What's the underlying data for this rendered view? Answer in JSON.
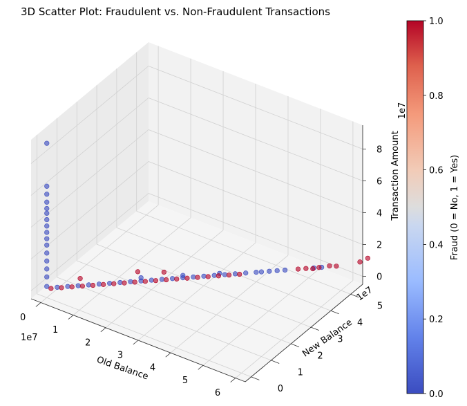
{
  "chart_data": {
    "type": "scatter",
    "title": "3D Scatter Plot: Fraudulent vs. Non-Fraudulent Transactions",
    "xlabel": "Old Balance",
    "ylabel": "New Balance",
    "zlabel": "Transaction Amount",
    "x_offset_text": "1e7",
    "y_offset_text": "1e7",
    "z_offset_text": "1e7",
    "xlim": [
      -0.3,
      6.3
    ],
    "ylim": [
      -0.3,
      5.6
    ],
    "zlim": [
      -0.5,
      9.5
    ],
    "x_ticks": [
      0,
      1,
      2,
      3,
      4,
      5,
      6
    ],
    "y_ticks": [
      0,
      1,
      2,
      3,
      4,
      5
    ],
    "z_ticks": [
      0,
      2,
      4,
      6,
      8
    ],
    "grid": true,
    "colorbar": {
      "label": "Fraud (0 = No, 1 = Yes)",
      "ticks": [
        "0.0",
        "0.2",
        "0.4",
        "0.6",
        "0.8",
        "1.0"
      ],
      "colormap": "coolwarm",
      "low_color": "#3b4cc0",
      "mid_color": "#dddddd",
      "high_color": "#b40426"
    },
    "series": [
      {
        "fraud": 0,
        "color": "#3b4cc0",
        "points": [
          [
            0,
            0,
            0.2
          ],
          [
            0,
            0,
            0.8
          ],
          [
            0,
            0,
            1.3
          ],
          [
            0,
            0,
            1.8
          ],
          [
            0,
            0,
            2.3
          ],
          [
            0,
            0,
            2.8
          ],
          [
            0,
            0,
            3.2
          ],
          [
            0,
            0,
            3.6
          ],
          [
            0,
            0,
            4.0
          ],
          [
            0,
            0,
            4.4
          ],
          [
            0,
            0,
            4.8
          ],
          [
            0,
            0,
            5.1
          ],
          [
            0,
            0,
            5.5
          ],
          [
            0,
            0,
            6.0
          ],
          [
            0,
            0,
            6.5
          ],
          [
            0,
            0,
            9.2
          ],
          [
            0.2,
            0.2,
            0.1
          ],
          [
            0.4,
            0.4,
            0.1
          ],
          [
            0.6,
            0.6,
            0.1
          ],
          [
            0.8,
            0.8,
            0.1
          ],
          [
            1.0,
            1.0,
            0.1
          ],
          [
            1.2,
            1.2,
            0.1
          ],
          [
            1.4,
            1.4,
            0.1
          ],
          [
            1.6,
            1.6,
            0.1
          ],
          [
            1.8,
            1.8,
            0.1
          ],
          [
            2.0,
            2.0,
            0.1
          ],
          [
            2.2,
            2.2,
            0.1
          ],
          [
            2.4,
            2.4,
            0.1
          ],
          [
            2.6,
            2.6,
            0.1
          ],
          [
            2.8,
            2.8,
            0.1
          ],
          [
            3.0,
            3.0,
            0.1
          ],
          [
            3.2,
            3.2,
            0.1
          ],
          [
            3.4,
            3.4,
            0.1
          ],
          [
            3.6,
            3.6,
            0.1
          ],
          [
            3.8,
            3.8,
            0.1
          ],
          [
            4.0,
            4.0,
            0.1
          ],
          [
            4.1,
            4.1,
            0.1
          ],
          [
            4.25,
            4.25,
            0.1
          ],
          [
            4.4,
            4.4,
            0.1
          ],
          [
            4.55,
            4.55,
            0.1
          ],
          [
            1.8,
            1.8,
            0.3
          ],
          [
            2.6,
            2.6,
            0.25
          ],
          [
            3.3,
            3.3,
            0.2
          ],
          [
            5.1,
            5.1,
            0.1
          ],
          [
            5.25,
            5.25,
            0.1
          ]
        ]
      },
      {
        "fraud": 1,
        "color": "#b40426",
        "points": [
          [
            0.1,
            0.05,
            0.1
          ],
          [
            0.3,
            0.25,
            0.1
          ],
          [
            0.5,
            0.45,
            0.1
          ],
          [
            0.7,
            0.65,
            0.1
          ],
          [
            0.9,
            0.85,
            0.1
          ],
          [
            1.1,
            1.05,
            0.1
          ],
          [
            1.3,
            1.25,
            0.1
          ],
          [
            1.5,
            1.45,
            0.1
          ],
          [
            1.7,
            1.65,
            0.1
          ],
          [
            1.9,
            1.85,
            0.1
          ],
          [
            2.1,
            2.05,
            0.1
          ],
          [
            2.3,
            2.25,
            0.1
          ],
          [
            2.5,
            2.45,
            0.1
          ],
          [
            2.7,
            2.65,
            0.1
          ],
          [
            2.9,
            2.85,
            0.1
          ],
          [
            3.1,
            3.05,
            0.1
          ],
          [
            3.3,
            3.25,
            0.1
          ],
          [
            3.5,
            3.45,
            0.1
          ],
          [
            3.7,
            3.65,
            0.1
          ],
          [
            0.6,
            0.7,
            0.45
          ],
          [
            1.7,
            1.8,
            0.6
          ],
          [
            2.2,
            2.3,
            0.45
          ],
          [
            4.8,
            4.8,
            0.1
          ],
          [
            4.95,
            4.95,
            0.1
          ],
          [
            5.1,
            5.05,
            0.1
          ],
          [
            5.2,
            5.2,
            0.1
          ],
          [
            5.4,
            5.4,
            0.15
          ],
          [
            5.55,
            5.5,
            0.15
          ],
          [
            6.0,
            5.95,
            0.3
          ],
          [
            6.15,
            6.1,
            0.5
          ]
        ]
      }
    ]
  }
}
